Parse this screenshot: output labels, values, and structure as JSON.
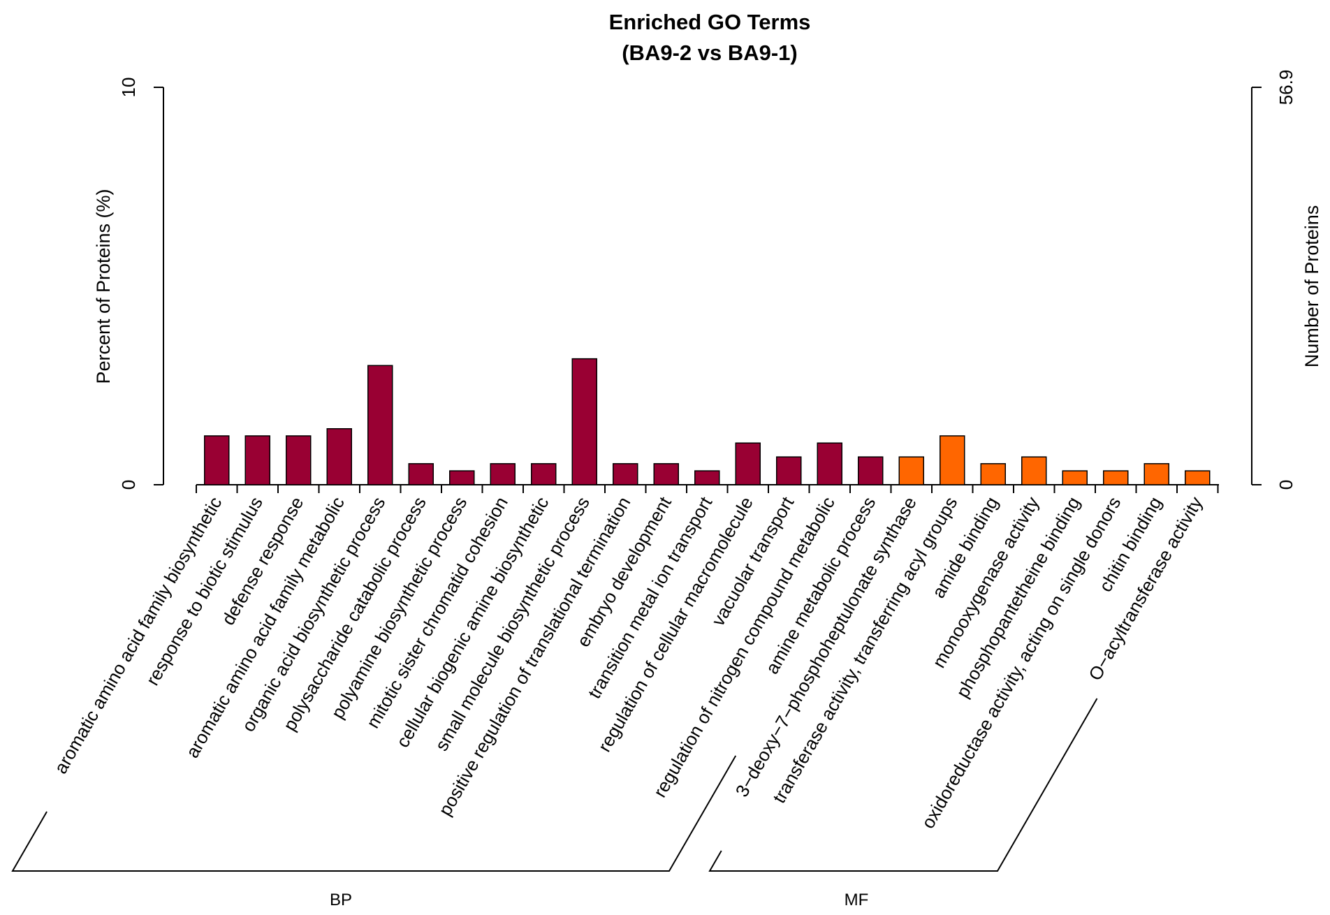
{
  "chart_data": {
    "type": "bar",
    "title": "Enriched GO Terms",
    "subtitle": "(BA9-2 vs BA9-1)",
    "ylabel_left": "Percent of Proteins (%)",
    "ylabel_right": "Number of Proteins",
    "ylim_left": [
      0,
      10
    ],
    "ylim_right": [
      0,
      56.9
    ],
    "left_ticks": [
      "0",
      "10"
    ],
    "right_ticks": [
      "0",
      "56.9"
    ],
    "categories": [
      "aromatic amino acid family biosynthetic",
      "response to biotic stimulus",
      "defense response",
      "aromatic amino acid family metabolic",
      "organic acid biosynthetic process",
      "polysaccharide catabolic process",
      "polyamine biosynthetic process",
      "mitotic sister chromatid cohesion",
      "cellular biogenic amine biosynthetic",
      "small molecule biosynthetic process",
      "positive regulation of translational termination",
      "embryo development",
      "transition metal ion transport",
      "regulation of cellular macromolecule",
      "vacuolar transport",
      "regulation of nitrogen compound metabolic",
      "amine metabolic process",
      "3−deoxy−7−phosphoheptulonate synthase",
      "transferase activity, transferring acyl groups",
      "amide binding",
      "monooxygenase activity",
      "phosphopantetheine binding",
      "oxidoreductase activity, acting on single donors",
      "chitin binding",
      "O−acyltransferase activity"
    ],
    "values": [
      1.23,
      1.23,
      1.23,
      1.41,
      3.0,
      0.53,
      0.35,
      0.53,
      0.53,
      3.17,
      0.53,
      0.53,
      0.35,
      1.05,
      0.7,
      1.05,
      0.7,
      0.7,
      1.23,
      0.53,
      0.7,
      0.35,
      0.35,
      0.53,
      0.35
    ],
    "groups": [
      "BP",
      "BP",
      "BP",
      "BP",
      "BP",
      "BP",
      "BP",
      "BP",
      "BP",
      "BP",
      "BP",
      "BP",
      "BP",
      "BP",
      "BP",
      "BP",
      "BP",
      "MF",
      "MF",
      "MF",
      "MF",
      "MF",
      "MF",
      "MF",
      "MF"
    ],
    "group_labels": [
      "BP",
      "MF"
    ],
    "colors": {
      "BP": "#990033",
      "MF": "#FF6600"
    }
  }
}
